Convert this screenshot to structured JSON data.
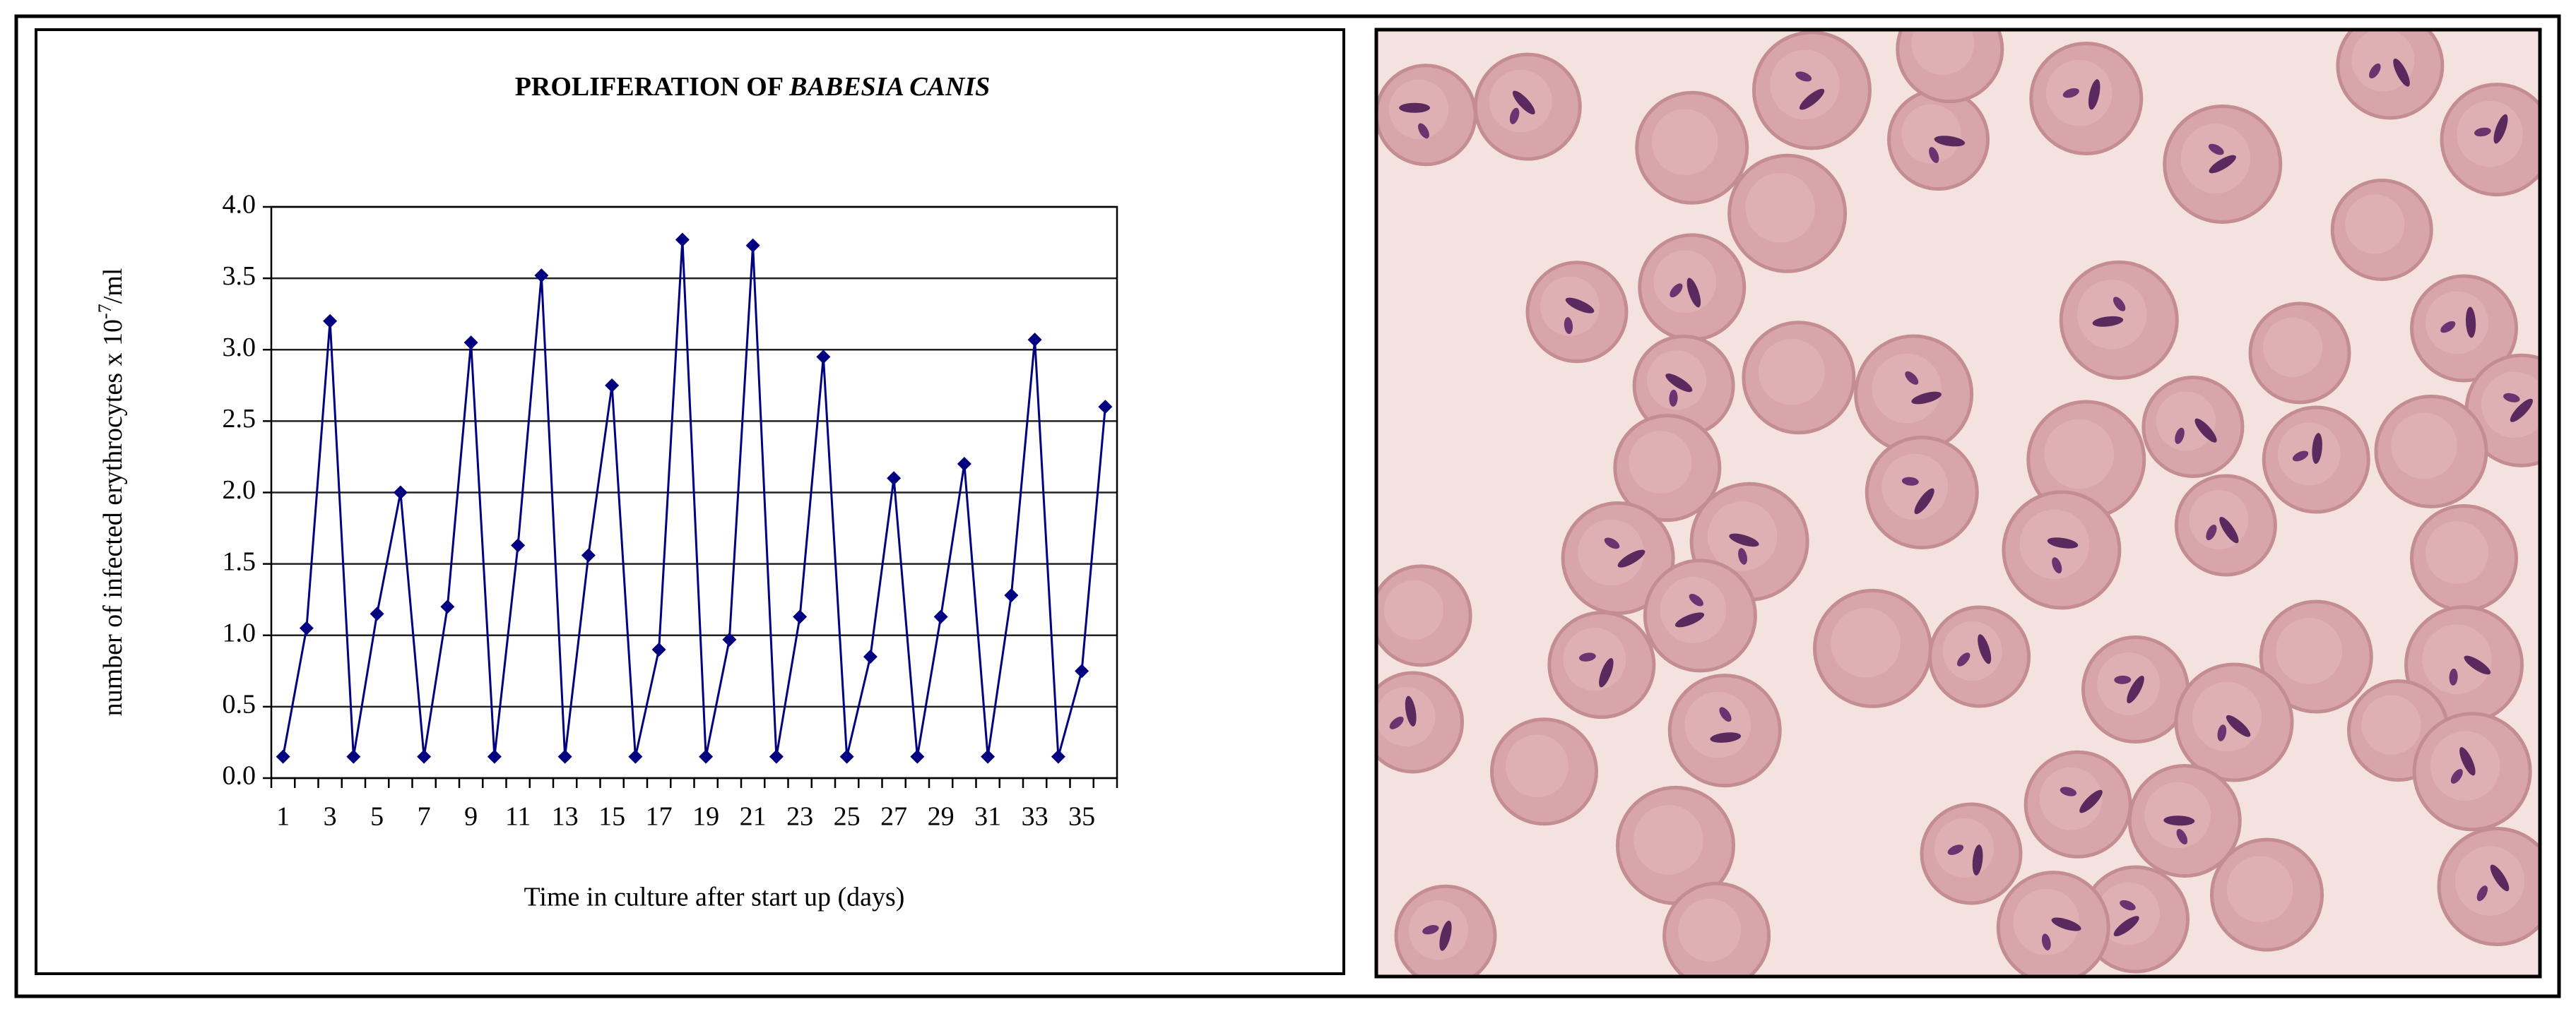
{
  "chart_data": {
    "type": "line",
    "title": "PROLIFERATION OF",
    "title_italic": "BABESIA CANIS",
    "y_label": "number of infected erythrocytes x 10",
    "y_label_sup": "-7",
    "y_label_unit": "/ml",
    "x_label": "Time in culture after start up (days)",
    "categories": [
      "1",
      null,
      "3",
      null,
      "5",
      null,
      "7",
      null,
      "9",
      null,
      "11",
      null,
      "13",
      null,
      "15",
      null,
      "17",
      null,
      "19",
      null,
      "21",
      null,
      "23",
      null,
      "25",
      null,
      "27",
      null,
      "29",
      null,
      "31",
      null,
      "33",
      null,
      "35",
      null
    ],
    "series": [
      {
        "color": "#000080",
        "values": [
          0.15,
          1.05,
          3.2,
          0.15,
          1.15,
          2.0,
          0.15,
          1.2,
          3.05,
          0.15,
          1.63,
          3.52,
          0.15,
          1.56,
          2.75,
          0.15,
          0.9,
          3.77,
          0.15,
          0.97,
          3.73,
          0.15,
          1.13,
          2.95,
          0.15,
          0.85,
          2.1,
          0.15,
          1.13,
          2.2,
          0.15,
          1.28,
          3.07,
          0.15,
          0.75,
          2.6
        ]
      }
    ],
    "ylim": [
      0,
      4
    ],
    "yticks": [
      {
        "value": 0,
        "label": "0.0"
      },
      0.5,
      {
        "value": 1,
        "label": "1.0"
      },
      1.5,
      {
        "value": 2,
        "label": "2.0"
      },
      2.5,
      {
        "value": 3,
        "label": "3.0"
      },
      3.5,
      {
        "value": 4,
        "label": "4.0"
      }
    ],
    "grid": true
  }
}
